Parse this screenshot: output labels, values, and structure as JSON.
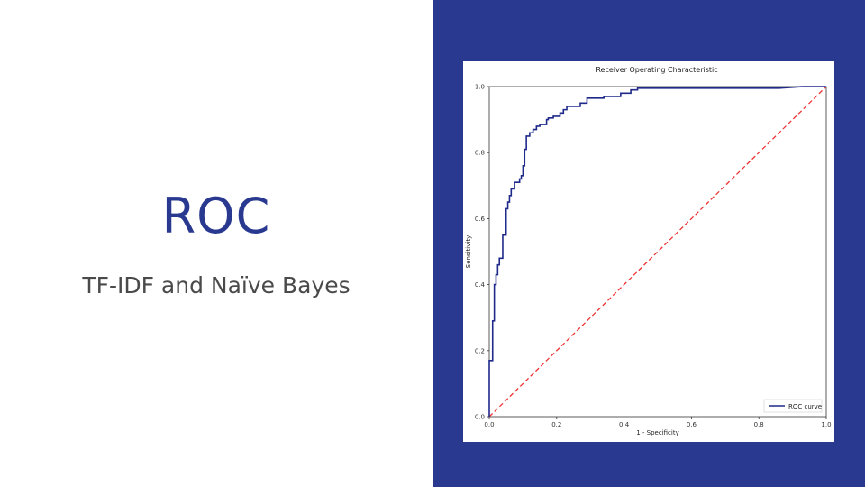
{
  "slide": {
    "title": "ROC",
    "subtitle": "TF-IDF and Naïve Bayes"
  },
  "colors": {
    "accent": "#2a3990",
    "roc_line": "#1f2a8a",
    "diagonal": "#ee3333",
    "subtitle": "#4a4a4a"
  },
  "chart_data": {
    "type": "line",
    "title": "Receiver Operating Characteristic",
    "xlabel": "1 - Specificity",
    "ylabel": "Sensitivity",
    "xlim": [
      0,
      1
    ],
    "ylim": [
      0,
      1
    ],
    "xticks": [
      "0.0",
      "0.2",
      "0.4",
      "0.6",
      "0.8",
      "1.0"
    ],
    "yticks": [
      "0.0",
      "0.2",
      "0.4",
      "0.6",
      "0.8",
      "1.0"
    ],
    "grid": false,
    "legend": {
      "position": "bottom-right",
      "entries": [
        "ROC curve"
      ]
    },
    "series": [
      {
        "name": "ROC curve",
        "color": "#1f2a8a",
        "style": "solid",
        "points": [
          [
            0.0,
            0.0
          ],
          [
            0.0,
            0.17
          ],
          [
            0.01,
            0.17
          ],
          [
            0.01,
            0.29
          ],
          [
            0.015,
            0.29
          ],
          [
            0.015,
            0.4
          ],
          [
            0.02,
            0.4
          ],
          [
            0.02,
            0.43
          ],
          [
            0.025,
            0.43
          ],
          [
            0.025,
            0.46
          ],
          [
            0.03,
            0.46
          ],
          [
            0.03,
            0.48
          ],
          [
            0.04,
            0.48
          ],
          [
            0.04,
            0.55
          ],
          [
            0.05,
            0.55
          ],
          [
            0.05,
            0.63
          ],
          [
            0.055,
            0.63
          ],
          [
            0.055,
            0.65
          ],
          [
            0.06,
            0.65
          ],
          [
            0.06,
            0.67
          ],
          [
            0.065,
            0.67
          ],
          [
            0.065,
            0.69
          ],
          [
            0.075,
            0.69
          ],
          [
            0.075,
            0.71
          ],
          [
            0.09,
            0.71
          ],
          [
            0.09,
            0.72
          ],
          [
            0.095,
            0.72
          ],
          [
            0.095,
            0.73
          ],
          [
            0.1,
            0.73
          ],
          [
            0.1,
            0.76
          ],
          [
            0.105,
            0.76
          ],
          [
            0.105,
            0.81
          ],
          [
            0.11,
            0.81
          ],
          [
            0.11,
            0.85
          ],
          [
            0.12,
            0.85
          ],
          [
            0.12,
            0.86
          ],
          [
            0.13,
            0.86
          ],
          [
            0.13,
            0.87
          ],
          [
            0.14,
            0.87
          ],
          [
            0.14,
            0.88
          ],
          [
            0.15,
            0.88
          ],
          [
            0.15,
            0.885
          ],
          [
            0.17,
            0.885
          ],
          [
            0.17,
            0.9
          ],
          [
            0.175,
            0.9
          ],
          [
            0.175,
            0.905
          ],
          [
            0.19,
            0.905
          ],
          [
            0.19,
            0.91
          ],
          [
            0.21,
            0.91
          ],
          [
            0.21,
            0.92
          ],
          [
            0.22,
            0.92
          ],
          [
            0.22,
            0.93
          ],
          [
            0.23,
            0.93
          ],
          [
            0.23,
            0.94
          ],
          [
            0.27,
            0.94
          ],
          [
            0.27,
            0.95
          ],
          [
            0.29,
            0.95
          ],
          [
            0.29,
            0.965
          ],
          [
            0.34,
            0.965
          ],
          [
            0.34,
            0.97
          ],
          [
            0.39,
            0.97
          ],
          [
            0.39,
            0.98
          ],
          [
            0.42,
            0.98
          ],
          [
            0.42,
            0.99
          ],
          [
            0.44,
            0.99
          ],
          [
            0.44,
            0.995
          ],
          [
            0.86,
            0.995
          ],
          [
            0.93,
            1.0
          ],
          [
            1.0,
            1.0
          ]
        ]
      },
      {
        "name": "",
        "color": "#ee3333",
        "style": "dashed",
        "points": [
          [
            0.0,
            0.0
          ],
          [
            1.0,
            1.0
          ]
        ]
      }
    ]
  }
}
